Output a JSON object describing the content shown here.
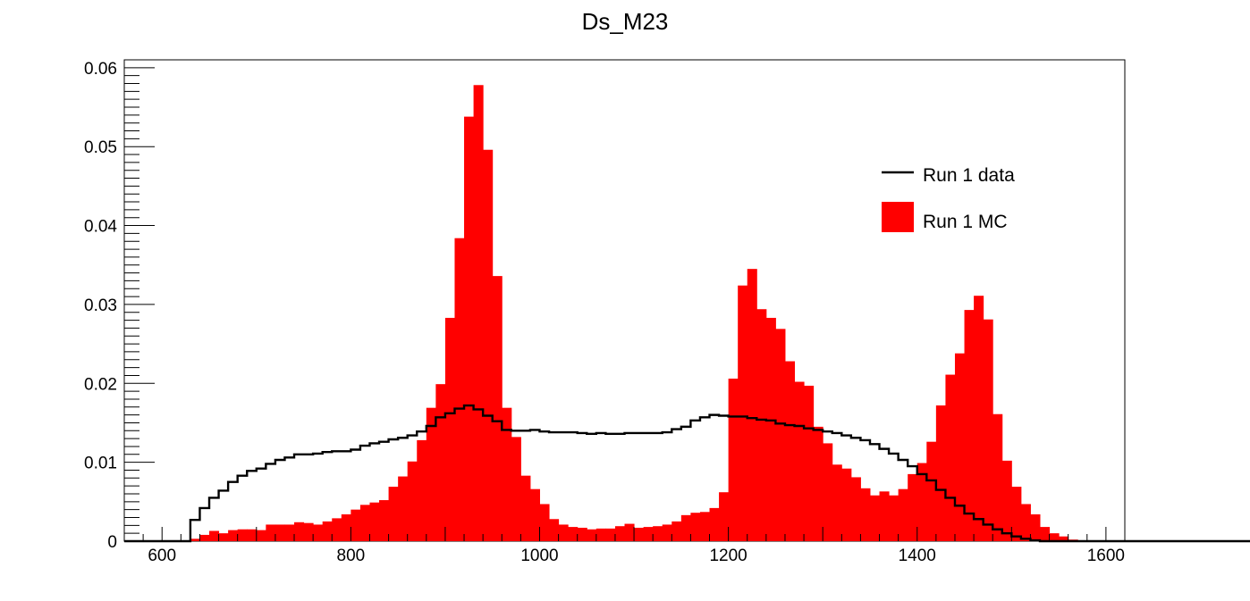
{
  "chart_data": {
    "type": "histogram",
    "title": "Ds_M23",
    "xlim": [
      560,
      1620
    ],
    "ylim": [
      0,
      0.061
    ],
    "x_ticks": [
      600,
      800,
      1000,
      1200,
      1400,
      1600
    ],
    "y_ticks": [
      0,
      0.01,
      0.02,
      0.03,
      0.04,
      0.05,
      0.06
    ],
    "x_tick_labels": [
      "600",
      "800",
      "1000",
      "1200",
      "1400",
      "1600"
    ],
    "y_tick_labels": [
      "0",
      "0.01",
      "0.02",
      "0.03",
      "0.04",
      "0.05",
      "0.06"
    ],
    "grid": false,
    "legend_position": "top-right",
    "bin_edges_start": 560,
    "bin_width": 10,
    "series": [
      {
        "name": "Run 1 MC",
        "style": "filled",
        "color": "#ff0000",
        "values": [
          0,
          0,
          0,
          0,
          0,
          0,
          0,
          0.0003,
          0.0008,
          0.0013,
          0.001,
          0.0014,
          0.0015,
          0.0015,
          0.0014,
          0.0021,
          0.0021,
          0.0021,
          0.0024,
          0.0023,
          0.0021,
          0.0025,
          0.0029,
          0.0034,
          0.004,
          0.0046,
          0.0049,
          0.0052,
          0.0069,
          0.0082,
          0.0101,
          0.0128,
          0.0169,
          0.0199,
          0.0283,
          0.0384,
          0.0538,
          0.0578,
          0.0496,
          0.0336,
          0.0169,
          0.0132,
          0.0083,
          0.0066,
          0.0047,
          0.0028,
          0.0021,
          0.0018,
          0.0017,
          0.0015,
          0.0016,
          0.0016,
          0.0019,
          0.0022,
          0.0017,
          0.0018,
          0.0019,
          0.0021,
          0.0025,
          0.0033,
          0.0036,
          0.0037,
          0.0042,
          0.0062,
          0.0206,
          0.0324,
          0.0345,
          0.0294,
          0.0283,
          0.0269,
          0.0228,
          0.0202,
          0.0197,
          0.0145,
          0.0124,
          0.0097,
          0.0092,
          0.0081,
          0.0067,
          0.0058,
          0.0063,
          0.0058,
          0.0066,
          0.0085,
          0.0099,
          0.0126,
          0.0172,
          0.0211,
          0.0238,
          0.0293,
          0.0311,
          0.0281,
          0.0161,
          0.0102,
          0.0069,
          0.0047,
          0.0034,
          0.0018,
          0.001,
          0.0006,
          0.0002,
          0,
          0,
          0,
          0,
          0,
          0,
          0,
          0,
          0,
          0,
          0,
          0,
          0,
          0,
          0,
          0,
          0,
          0,
          0,
          0,
          0,
          0,
          0,
          0,
          0,
          0,
          0,
          0,
          0,
          0,
          0,
          0,
          0,
          0
        ]
      },
      {
        "name": "Run 1 data",
        "style": "step",
        "color": "#000000",
        "values": [
          0,
          0,
          0,
          0,
          0,
          0,
          0,
          0.0027,
          0.0042,
          0.0055,
          0.0064,
          0.0075,
          0.0083,
          0.0089,
          0.0092,
          0.0098,
          0.0103,
          0.0106,
          0.011,
          0.011,
          0.0111,
          0.0113,
          0.0114,
          0.0114,
          0.0116,
          0.0121,
          0.0124,
          0.0126,
          0.0129,
          0.0131,
          0.0134,
          0.0139,
          0.0146,
          0.0157,
          0.0162,
          0.0168,
          0.0172,
          0.0167,
          0.0159,
          0.0152,
          0.0141,
          0.014,
          0.014,
          0.0141,
          0.0139,
          0.0138,
          0.0138,
          0.0138,
          0.0137,
          0.0136,
          0.0137,
          0.0136,
          0.0136,
          0.0137,
          0.0137,
          0.0137,
          0.0137,
          0.0138,
          0.0142,
          0.0145,
          0.0153,
          0.0157,
          0.016,
          0.0159,
          0.0158,
          0.0158,
          0.0156,
          0.0154,
          0.0153,
          0.0149,
          0.0147,
          0.0146,
          0.0143,
          0.0141,
          0.0139,
          0.0137,
          0.0134,
          0.0131,
          0.0128,
          0.0123,
          0.0117,
          0.0111,
          0.0103,
          0.0095,
          0.0085,
          0.0077,
          0.0065,
          0.0055,
          0.0045,
          0.0035,
          0.0028,
          0.0021,
          0.0015,
          0.001,
          0.0006,
          0.0003,
          0.0001,
          0,
          0,
          0,
          0,
          0,
          0,
          0,
          0,
          0,
          0,
          0,
          0,
          0,
          0,
          0,
          0,
          0,
          0,
          0,
          0,
          0,
          0,
          0,
          0,
          0,
          0,
          0,
          0,
          0,
          0,
          0,
          0,
          0,
          0,
          0,
          0,
          0
        ]
      }
    ]
  }
}
